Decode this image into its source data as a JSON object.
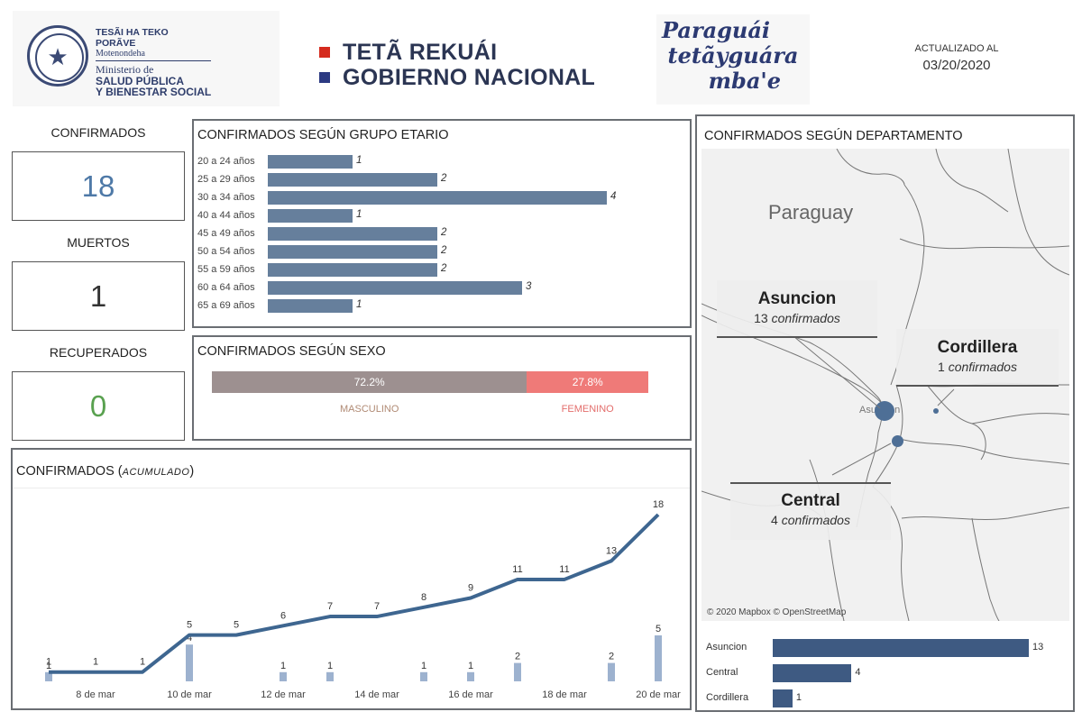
{
  "header": {
    "ministry": {
      "line1": "TESÃI HA TEKO",
      "line2": "PORÃVE",
      "line3": "Motenondeha",
      "line4": "Ministerio de",
      "line5": "SALUD PÚBLICA",
      "line6": "Y BIENESTAR SOCIAL"
    },
    "government": {
      "line1": "TETÃ REKUÁI",
      "line2": "GOBIERNO NACIONAL"
    },
    "slogan": [
      "Paraguái",
      "tetãyguára",
      "mba'e"
    ],
    "updated_label": "ACTUALIZADO AL",
    "updated_date": "03/20/2020"
  },
  "kpis": {
    "confirmed": {
      "label": "CONFIRMADOS",
      "value": "18",
      "color": "#4e79a7"
    },
    "deaths": {
      "label": "MUERTOS",
      "value": "1",
      "color": "#333333"
    },
    "recovered": {
      "label": "RECUPERADOS",
      "value": "0",
      "color": "#59a14f"
    }
  },
  "age_chart": {
    "title": "CONFIRMADOS SEGÚN GRUPO ETARIO",
    "bar_color": "#667f9c",
    "max": 4,
    "rows": [
      {
        "label": "20 a 24 años",
        "value": 1
      },
      {
        "label": "25 a 29 años",
        "value": 2
      },
      {
        "label": "30 a 34 años",
        "value": 4
      },
      {
        "label": "40 a 44 años",
        "value": 1
      },
      {
        "label": "45 a 49 años",
        "value": 2
      },
      {
        "label": "50 a 54 años",
        "value": 2
      },
      {
        "label": "55 a 59 años",
        "value": 2
      },
      {
        "label": "60 a 64 años",
        "value": 3
      },
      {
        "label": "65 a 69 años",
        "value": 1
      }
    ]
  },
  "sex_chart": {
    "title": "CONFIRMADOS SEGÚN SEXO",
    "male": {
      "label": "MASCULINO",
      "pct_label": "72.2%",
      "share": 0.722,
      "color": "#9d9090",
      "label_color": "#b08a74"
    },
    "female": {
      "label": "FEMENINO",
      "pct_label": "27.8%",
      "share": 0.278,
      "color": "#ef7a78",
      "label_color": "#e36d6b"
    }
  },
  "cumulative_chart": {
    "title": "CONFIRMADOS",
    "subtitle": "ACUMULADO",
    "line_color": "#3e6690",
    "bar_color": "#9db2cf",
    "chart_data": {
      "type": "line",
      "x": [
        "7 mar",
        "8 mar",
        "9 mar",
        "10 mar",
        "11 mar",
        "12 mar",
        "13 mar",
        "14 mar",
        "15 mar",
        "16 mar",
        "17 mar",
        "18 mar",
        "19 mar",
        "20 mar"
      ],
      "series": [
        {
          "name": "",
          "values": [
            1,
            1,
            1,
            5,
            5,
            6,
            7,
            7,
            8,
            9,
            11,
            11,
            13,
            18
          ]
        }
      ],
      "daily_new": [
        1,
        0,
        0,
        4,
        0,
        1,
        1,
        0,
        1,
        1,
        2,
        0,
        2,
        5
      ],
      "tick_labels": [
        "8 de mar",
        "10 de mar",
        "12 de mar",
        "14 de mar",
        "16 de mar",
        "18 de mar",
        "20 de mar"
      ],
      "ylim": [
        0,
        18
      ]
    }
  },
  "department_map": {
    "title": "CONFIRMADOS SEGÚN DEPARTAMENTO",
    "country_label": "Paraguay",
    "city_label": "Asunción",
    "attribution": "© 2020 Mapbox © OpenStreetMap",
    "word_confirmed": "confirmados",
    "callouts": [
      {
        "name": "Asuncion",
        "count": "13"
      },
      {
        "name": "Cordillera",
        "count": "1"
      },
      {
        "name": "Central",
        "count": "4"
      }
    ]
  },
  "department_bars": {
    "bar_color": "#3e5a82",
    "max": 13,
    "rows": [
      {
        "label": "Asuncion",
        "value": 13
      },
      {
        "label": "Central",
        "value": 4
      },
      {
        "label": "Cordillera",
        "value": 1
      }
    ]
  }
}
